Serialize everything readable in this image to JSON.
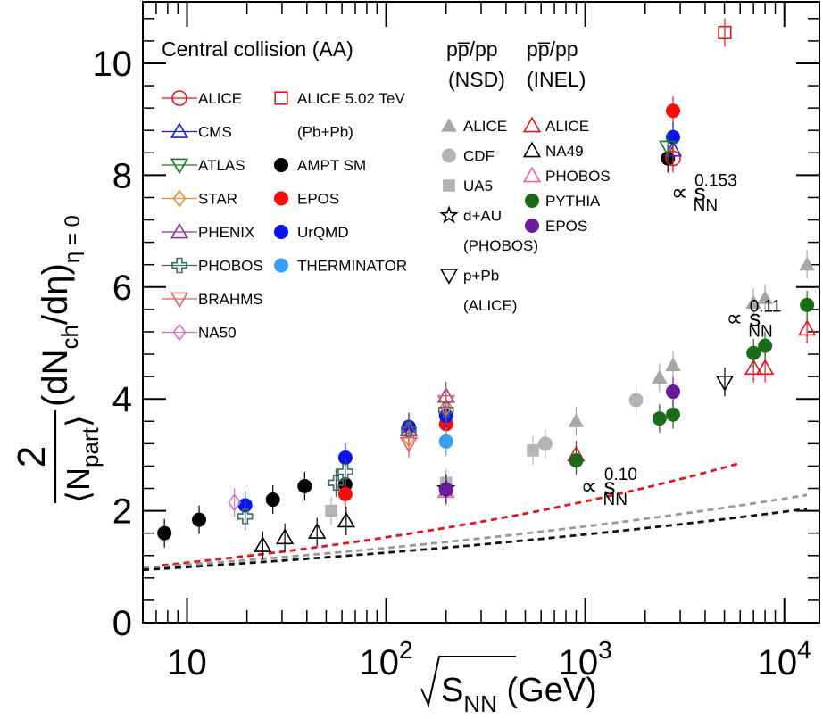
{
  "chart_data": {
    "type": "scatter",
    "x_scale": "log",
    "xlim": [
      6,
      15000
    ],
    "ylim": [
      0,
      11.1
    ],
    "x_ticks": [
      {
        "v": 10,
        "l": "10"
      },
      {
        "v": 100,
        "l": "10",
        "sup": "2"
      },
      {
        "v": 1000,
        "l": "10",
        "sup": "3"
      },
      {
        "v": 10000,
        "l": "10",
        "sup": "4"
      }
    ],
    "y_ticks": [
      0,
      2,
      4,
      6,
      8,
      10
    ],
    "xlabel": {
      "main": "S",
      "sub": "NN",
      "unit": " (GeV)"
    },
    "ylabel": {
      "num": "2",
      "den": "⟨N",
      "den_sub": "part",
      "den_end": "⟩",
      "rest_a": "(dN",
      "sub_ch": "ch",
      "rest_b": "/dη)",
      "sub_eta": "η = 0"
    },
    "header": {
      "line1": "Central collision (AA)",
      "col_nsd": "pp̅/pp",
      "col_inel": "pp̅/pp",
      "row2_nsd": "(NSD)",
      "row2_inel": "(INEL)"
    },
    "legend_aa": [
      {
        "name": "ALICE",
        "marker": "circle-open",
        "color": "#e8141c"
      },
      {
        "name": "CMS",
        "marker": "triangle-open",
        "color": "#1c1ce0"
      },
      {
        "name": "ATLAS",
        "marker": "itriangle-open",
        "color": "#1e7a1e"
      },
      {
        "name": "STAR",
        "marker": "diamond-open",
        "color": "#f08a30"
      },
      {
        "name": "PHENIX",
        "marker": "triangle-open",
        "color": "#8a3a9a"
      },
      {
        "name": "PHOBOS",
        "marker": "cross-open",
        "color": "#3d6a6a"
      },
      {
        "name": "BRAHMS",
        "marker": "itriangle-open",
        "color": "#e06060"
      },
      {
        "name": "NA50",
        "marker": "diamond-open",
        "color": "#cc77cc"
      }
    ],
    "legend_col2": [
      {
        "name": "ALICE 5.02 TeV",
        "marker": "square-open",
        "color": "#e8141c"
      },
      {
        "name": "(Pb+Pb)",
        "marker": "none",
        "color": "#000000"
      },
      {
        "name": "AMPT SM",
        "marker": "circle",
        "color": "#000000"
      },
      {
        "name": "EPOS",
        "marker": "circle",
        "color": "#ff0a0a"
      },
      {
        "name": "UrQMD",
        "marker": "circle",
        "color": "#0a14ee"
      },
      {
        "name": "THERMINATOR",
        "marker": "circle",
        "color": "#38a0ee"
      }
    ],
    "legend_nsd": [
      {
        "name": "ALICE",
        "marker": "triangle",
        "color": "#a6a6a6"
      },
      {
        "name": "CDF",
        "marker": "circle",
        "color": "#b4b4b4"
      },
      {
        "name": "UA5",
        "marker": "square",
        "color": "#b4b4b4"
      },
      {
        "name": "d+AU",
        "marker": "star-open",
        "color": "#000000"
      },
      {
        "name": "(PHOBOS)",
        "marker": "none",
        "color": "#000000"
      },
      {
        "name": "p+Pb",
        "marker": "itriangle-open",
        "color": "#000000"
      },
      {
        "name": "(ALICE)",
        "marker": "none",
        "color": "#000000"
      }
    ],
    "legend_inel": [
      {
        "name": "ALICE",
        "marker": "triangle-open",
        "color": "#e8141c"
      },
      {
        "name": "NA49",
        "marker": "triangle-open",
        "color": "#000000"
      },
      {
        "name": "PHOBOS",
        "marker": "triangle-open",
        "color": "#f060a0"
      },
      {
        "name": "PYTHIA",
        "marker": "circle",
        "color": "#1a6b1a"
      },
      {
        "name": "EPOS",
        "marker": "circle",
        "color": "#6a1a9a"
      }
    ],
    "fits": [
      {
        "label": "0.153",
        "color": "#e8141c",
        "a": 0.754,
        "p": 0.153,
        "x_range": [
          7.5,
          6000
        ]
      },
      {
        "label": "0.11",
        "color": "#999999",
        "a": 0.805,
        "p": 0.11,
        "x_range": [
          6,
          13000
        ]
      },
      {
        "label": "0.10",
        "color": "#111111",
        "a": 0.79,
        "p": 0.1,
        "x_range": [
          6,
          13000
        ]
      }
    ],
    "annotations": [
      {
        "prefix": "∝ s",
        "sub": "NN",
        "sup": "0.153",
        "x": 2700,
        "y": 7.55
      },
      {
        "prefix": "∝ s",
        "sub": "NN",
        "sup": "0.11",
        "x": 5100,
        "y": 5.3
      },
      {
        "prefix": "∝ s",
        "sub": "NN",
        "sup": "0.10",
        "x": 950,
        "y": 2.3
      }
    ],
    "series": [
      {
        "name": "AMPT SM",
        "marker": "circle",
        "color": "#000000",
        "points": [
          [
            7.7,
            1.6
          ],
          [
            11.5,
            1.84
          ],
          [
            27,
            2.2
          ],
          [
            39,
            2.44
          ],
          [
            62.4,
            2.47
          ],
          [
            200,
            2.4
          ],
          [
            2600,
            8.3
          ]
        ]
      },
      {
        "name": "EPOS",
        "marker": "circle",
        "color": "#ff0a0a",
        "points": [
          [
            62.4,
            2.3
          ],
          [
            200,
            3.55
          ],
          [
            2760,
            9.15
          ]
        ]
      },
      {
        "name": "UrQMD",
        "marker": "circle",
        "color": "#0a14ee",
        "points": [
          [
            19.6,
            2.1
          ],
          [
            62.4,
            2.95
          ],
          [
            130,
            3.5
          ],
          [
            200,
            3.7
          ],
          [
            2760,
            8.68
          ]
        ]
      },
      {
        "name": "THERMINATOR",
        "marker": "circle",
        "color": "#38a0ee",
        "points": [
          [
            200,
            3.24
          ]
        ]
      },
      {
        "name": "ALICE 5.02 TeV",
        "marker": "square-open",
        "color": "#e8141c",
        "points": [
          [
            5020,
            10.55
          ]
        ]
      },
      {
        "name": "CMS",
        "marker": "triangle-open",
        "color": "#1c1ce0",
        "points": [
          [
            2760,
            8.45
          ]
        ]
      },
      {
        "name": "ATLAS",
        "marker": "itriangle-open",
        "color": "#1e7a1e",
        "points": [
          [
            2600,
            8.5
          ]
        ]
      },
      {
        "name": "ALICE",
        "marker": "circle-open",
        "color": "#e8141c",
        "points": [
          [
            2760,
            8.3
          ]
        ]
      },
      {
        "name": "STAR",
        "marker": "diamond-open",
        "color": "#f08a30",
        "points": [
          [
            130,
            3.3
          ],
          [
            200,
            3.85
          ]
        ]
      },
      {
        "name": "PHENIX",
        "marker": "triangle-open",
        "color": "#8a3a9a",
        "points": [
          [
            130,
            3.45
          ],
          [
            200,
            4.05
          ]
        ]
      },
      {
        "name": "PHOBOS",
        "marker": "cross-open",
        "color": "#3d6a6a",
        "points": [
          [
            19.6,
            1.9
          ],
          [
            56,
            2.5
          ],
          [
            62.4,
            2.7
          ],
          [
            130,
            3.45
          ],
          [
            200,
            3.8
          ]
        ]
      },
      {
        "name": "BRAHMS",
        "marker": "itriangle-open",
        "color": "#e06060",
        "points": [
          [
            130,
            3.2
          ],
          [
            200,
            3.95
          ]
        ]
      },
      {
        "name": "NA50",
        "marker": "diamond-open",
        "color": "#cc77cc",
        "points": [
          [
            17.3,
            2.15
          ]
        ]
      },
      {
        "name": "ALICE (NSD)",
        "marker": "triangle",
        "color": "#a6a6a6",
        "points": [
          [
            900,
            3.6
          ],
          [
            2360,
            4.38
          ],
          [
            2760,
            4.6
          ],
          [
            7000,
            5.72
          ],
          [
            8000,
            5.8
          ],
          [
            13000,
            6.4
          ]
        ]
      },
      {
        "name": "CDF",
        "marker": "circle",
        "color": "#b4b4b4",
        "points": [
          [
            630,
            3.2
          ],
          [
            1800,
            3.98
          ]
        ]
      },
      {
        "name": "UA5",
        "marker": "square",
        "color": "#b4b4b4",
        "points": [
          [
            53,
            2.0
          ],
          [
            200,
            2.5
          ],
          [
            546,
            3.08
          ]
        ]
      },
      {
        "name": "d+AU",
        "marker": "star-open",
        "color": "#000000",
        "points": [
          [
            200,
            2.4
          ]
        ]
      },
      {
        "name": "p+Pb",
        "marker": "itriangle-open",
        "color": "#000000",
        "points": [
          [
            5020,
            4.3
          ]
        ]
      },
      {
        "name": "ALICE (INEL)",
        "marker": "triangle-open",
        "color": "#e8141c",
        "points": [
          [
            900,
            3.0
          ],
          [
            7000,
            4.55
          ],
          [
            8000,
            4.55
          ],
          [
            13000,
            5.25
          ]
        ]
      },
      {
        "name": "NA49",
        "marker": "triangle-open",
        "color": "#000000",
        "points": [
          [
            24,
            1.38
          ],
          [
            31,
            1.52
          ],
          [
            45,
            1.62
          ],
          [
            63,
            1.82
          ]
        ]
      },
      {
        "name": "PHOBOS (INEL)",
        "marker": "triangle-open",
        "color": "#f060a0",
        "points": [
          [
            200,
            2.35
          ]
        ]
      },
      {
        "name": "PYTHIA",
        "marker": "circle",
        "color": "#1a6b1a",
        "points": [
          [
            900,
            2.9
          ],
          [
            2360,
            3.65
          ],
          [
            2760,
            3.72
          ],
          [
            7000,
            4.82
          ],
          [
            8000,
            4.95
          ],
          [
            13000,
            5.68
          ]
        ]
      },
      {
        "name": "EPOS (pp)",
        "marker": "circle",
        "color": "#6a1a9a",
        "points": [
          [
            200,
            2.38
          ],
          [
            2760,
            4.13
          ]
        ]
      }
    ]
  }
}
